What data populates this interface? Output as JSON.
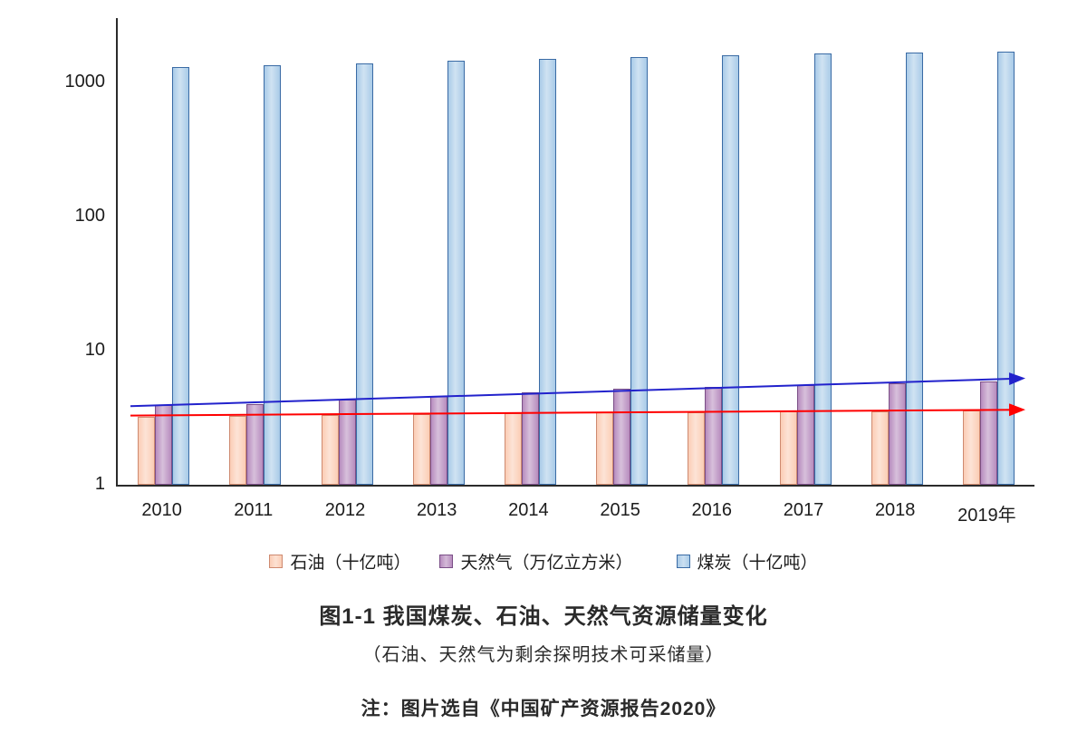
{
  "chart_data": {
    "type": "bar",
    "scale": "log",
    "title": "图1-1  我国煤炭、石油、天然气资源储量变化",
    "subtitle": "（石油、天然气为剩余探明技术可采储量）",
    "note": "注：图片选自《中国矿产资源报告2020》",
    "categories": [
      "2010",
      "2011",
      "2012",
      "2013",
      "2014",
      "2015",
      "2016",
      "2017",
      "2018",
      "2019年"
    ],
    "series": [
      {
        "key": "oil",
        "name": "石油（十亿吨）",
        "color": "#FBCDB5",
        "border": "#CE8A70",
        "values": [
          3.2,
          3.25,
          3.3,
          3.35,
          3.4,
          3.45,
          3.45,
          3.5,
          3.55,
          3.6
        ]
      },
      {
        "key": "gas",
        "name": "天然气（万亿立方米）",
        "color": "#B78CBE",
        "border": "#7B4F87",
        "values": [
          3.9,
          4.0,
          4.3,
          4.6,
          4.9,
          5.2,
          5.4,
          5.5,
          5.7,
          5.9
        ]
      },
      {
        "key": "coal",
        "name": "煤炭（十亿吨）",
        "color": "#A9CBE8",
        "border": "#3A6BA5",
        "values": [
          1300,
          1340,
          1390,
          1440,
          1490,
          1540,
          1590,
          1640,
          1665,
          1700
        ]
      }
    ],
    "trendlines": [
      {
        "key": "oil-trend",
        "color": "#FF0000",
        "start": 3.28,
        "end": 3.62
      },
      {
        "key": "gas-trend",
        "color": "#2222CC",
        "start": 3.85,
        "end": 6.2
      }
    ],
    "yticks": [
      1,
      10,
      100,
      1000
    ],
    "ylim": [
      1,
      3000
    ],
    "grid": false,
    "legend_position": "bottom"
  }
}
